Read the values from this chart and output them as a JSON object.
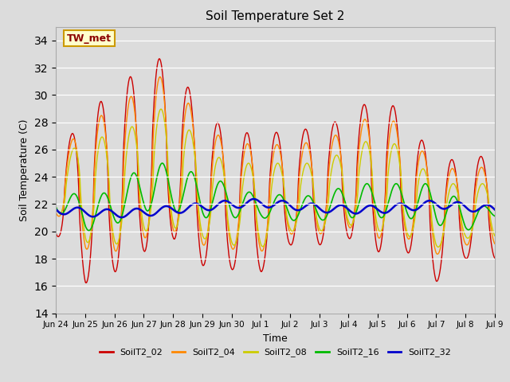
{
  "title": "Soil Temperature Set 2",
  "xlabel": "Time",
  "ylabel": "Soil Temperature (C)",
  "ylim": [
    14,
    35
  ],
  "yticks": [
    14,
    16,
    18,
    20,
    22,
    24,
    26,
    28,
    30,
    32,
    34
  ],
  "bg_color": "#dcdcdc",
  "plot_bg": "#dcdcdc",
  "annotation_text": "TW_met",
  "annotation_bg": "#ffffcc",
  "annotation_border": "#cc9900",
  "series": {
    "SoilT2_02": {
      "color": "#cc0000",
      "lw": 1.0
    },
    "SoilT2_04": {
      "color": "#ff8800",
      "lw": 1.0
    },
    "SoilT2_08": {
      "color": "#cccc00",
      "lw": 1.0
    },
    "SoilT2_16": {
      "color": "#00bb00",
      "lw": 1.2
    },
    "SoilT2_32": {
      "color": "#0000cc",
      "lw": 1.8
    }
  },
  "legend_colors": {
    "SoilT2_02": "#cc0000",
    "SoilT2_04": "#ff8800",
    "SoilT2_08": "#cccc00",
    "SoilT2_16": "#00bb00",
    "SoilT2_32": "#0000cc"
  },
  "xtick_labels": [
    "Jun 24",
    "Jun 25",
    "Jun 26",
    "Jun 27",
    "Jun 28",
    "Jun 29",
    "Jun 30",
    "Jul 1",
    "Jul 2",
    "Jul 3",
    "Jul 4",
    "Jul 5",
    "Jul 6",
    "Jul 7",
    "Jul 8",
    "Jul 9"
  ],
  "xtick_positions": [
    0,
    1,
    2,
    3,
    4,
    5,
    6,
    7,
    8,
    9,
    10,
    11,
    12,
    13,
    14,
    15
  ]
}
